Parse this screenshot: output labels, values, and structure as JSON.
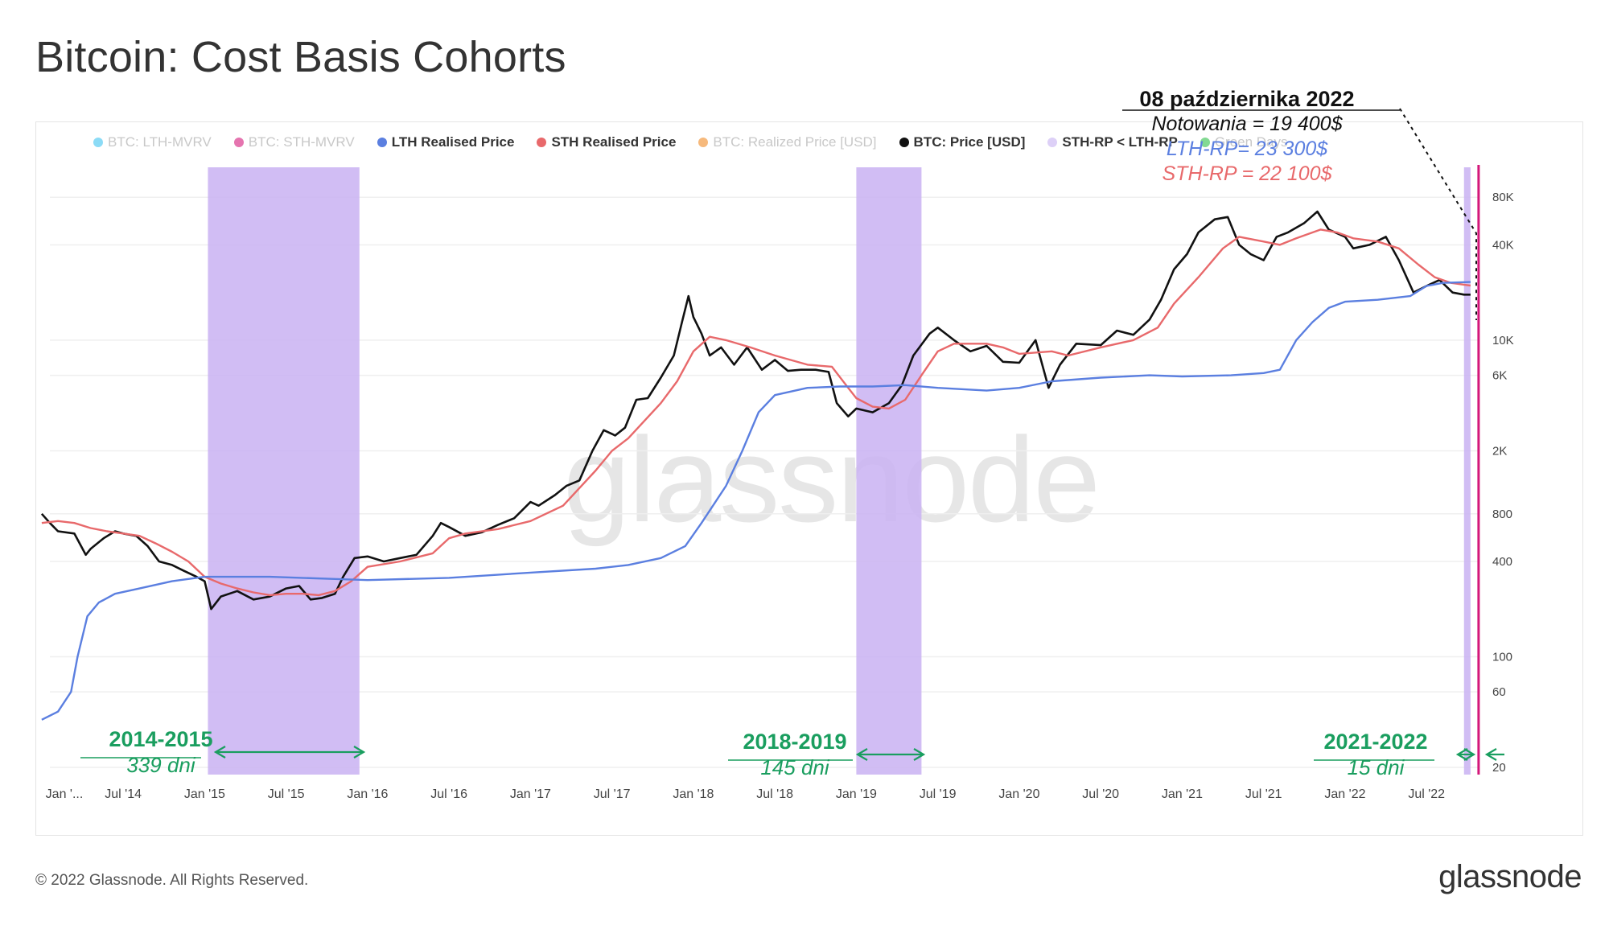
{
  "page": {
    "title": "Bitcoin: Cost Basis Cohorts",
    "copyright": "© 2022 Glassnode. All Rights Reserved.",
    "logo": "glassnode",
    "watermark": "glassnode"
  },
  "legend": [
    {
      "label": "BTC: LTH-MVRV",
      "color": "#3ec3f0",
      "faded": true
    },
    {
      "label": "BTC: STH-MVRV",
      "color": "#d4177a",
      "faded": true
    },
    {
      "label": "LTH Realised Price",
      "color": "#5b7fe0",
      "faded": false
    },
    {
      "label": "STH Realised Price",
      "color": "#e8696b",
      "faded": false
    },
    {
      "label": "BTC: Realized Price [USD]",
      "color": "#f08a24",
      "faded": true
    },
    {
      "label": "BTC: Price [USD]",
      "color": "#111111",
      "faded": false
    },
    {
      "label": "STH-RP < LTH-RP",
      "color": "#ddd0f7",
      "faded": false
    },
    {
      "label": "Green Days",
      "color": "#2fbf4a",
      "faded": true
    }
  ],
  "annotation": {
    "date": "08 października 2022",
    "price_line": "Notowania = 19 400$",
    "lth_line": "LTH-RP= 23 300$",
    "sth_line": "STH-RP = 22 100$",
    "price_color": "#111111",
    "lth_color": "#5b7fe0",
    "sth_color": "#e8696b"
  },
  "periods": [
    {
      "label": "2014-2015",
      "days": "339 dni"
    },
    {
      "label": "2018-2019",
      "days": "145 dni"
    },
    {
      "label": "2021-2022",
      "days": "15 dni"
    }
  ],
  "chart_data": {
    "type": "line",
    "scale": "log",
    "title": "Bitcoin: Cost Basis Cohorts",
    "xlabel": "",
    "ylabel": "",
    "xlim": [
      2014.05,
      2022.82
    ],
    "ylim": [
      18,
      110000
    ],
    "y_ticks": [
      20,
      60,
      100,
      400,
      800,
      2000,
      6000,
      10000,
      40000,
      80000
    ],
    "y_tick_labels": [
      "20",
      "60",
      "100",
      "400",
      "800",
      "2K",
      "6K",
      "10K",
      "40K",
      "80K"
    ],
    "x_ticks": [
      2014.0,
      2014.5,
      2015.0,
      2015.5,
      2016.0,
      2016.5,
      2017.0,
      2017.5,
      2018.0,
      2018.5,
      2019.0,
      2019.5,
      2020.0,
      2020.5,
      2021.0,
      2021.5,
      2022.0,
      2022.5
    ],
    "x_tick_labels": [
      "Jan '...",
      "Jul '14",
      "Jan '15",
      "Jul '15",
      "Jan '16",
      "Jul '16",
      "Jan '17",
      "Jul '17",
      "Jan '18",
      "Jul '18",
      "Jan '19",
      "Jul '19",
      "Jan '20",
      "Jul '20",
      "Jan '21",
      "Jul '21",
      "Jan '22",
      "Jul '22"
    ],
    "grid": true,
    "legend_position": "top",
    "shaded_regions": [
      {
        "name": "STH-RP < LTH-RP",
        "from": 2015.02,
        "to": 2015.95,
        "color": "#c9b2f2"
      },
      {
        "name": "STH-RP < LTH-RP",
        "from": 2019.0,
        "to": 2019.4,
        "color": "#c9b2f2"
      },
      {
        "name": "STH-RP < LTH-RP",
        "from": 2022.73,
        "to": 2022.77,
        "color": "#c9b2f2"
      }
    ],
    "marker_line": {
      "x": 2022.78,
      "color": "#d4177a"
    },
    "series": [
      {
        "name": "BTC: Price [USD]",
        "color": "#111111",
        "points": [
          [
            2014.0,
            800
          ],
          [
            2014.05,
            700
          ],
          [
            2014.1,
            620
          ],
          [
            2014.2,
            600
          ],
          [
            2014.27,
            440
          ],
          [
            2014.3,
            480
          ],
          [
            2014.38,
            560
          ],
          [
            2014.45,
            620
          ],
          [
            2014.5,
            600
          ],
          [
            2014.58,
            580
          ],
          [
            2014.65,
            500
          ],
          [
            2014.72,
            400
          ],
          [
            2014.8,
            380
          ],
          [
            2014.87,
            350
          ],
          [
            2014.95,
            320
          ],
          [
            2015.0,
            300
          ],
          [
            2015.04,
            200
          ],
          [
            2015.1,
            240
          ],
          [
            2015.2,
            260
          ],
          [
            2015.3,
            230
          ],
          [
            2015.4,
            240
          ],
          [
            2015.5,
            270
          ],
          [
            2015.58,
            280
          ],
          [
            2015.65,
            230
          ],
          [
            2015.72,
            235
          ],
          [
            2015.8,
            250
          ],
          [
            2015.85,
            320
          ],
          [
            2015.92,
            420
          ],
          [
            2016.0,
            430
          ],
          [
            2016.1,
            400
          ],
          [
            2016.2,
            420
          ],
          [
            2016.3,
            440
          ],
          [
            2016.4,
            580
          ],
          [
            2016.45,
            700
          ],
          [
            2016.5,
            660
          ],
          [
            2016.6,
            580
          ],
          [
            2016.7,
            610
          ],
          [
            2016.8,
            680
          ],
          [
            2016.9,
            750
          ],
          [
            2017.0,
            950
          ],
          [
            2017.05,
            900
          ],
          [
            2017.15,
            1050
          ],
          [
            2017.22,
            1200
          ],
          [
            2017.3,
            1300
          ],
          [
            2017.38,
            2000
          ],
          [
            2017.45,
            2700
          ],
          [
            2017.52,
            2500
          ],
          [
            2017.58,
            2800
          ],
          [
            2017.65,
            4200
          ],
          [
            2017.72,
            4300
          ],
          [
            2017.8,
            5800
          ],
          [
            2017.88,
            8000
          ],
          [
            2017.93,
            13000
          ],
          [
            2017.97,
            19000
          ],
          [
            2018.0,
            14000
          ],
          [
            2018.05,
            11000
          ],
          [
            2018.1,
            8000
          ],
          [
            2018.17,
            9000
          ],
          [
            2018.25,
            7000
          ],
          [
            2018.33,
            9000
          ],
          [
            2018.42,
            6500
          ],
          [
            2018.5,
            7500
          ],
          [
            2018.58,
            6400
          ],
          [
            2018.66,
            6500
          ],
          [
            2018.75,
            6500
          ],
          [
            2018.83,
            6300
          ],
          [
            2018.88,
            4000
          ],
          [
            2018.95,
            3300
          ],
          [
            2019.0,
            3700
          ],
          [
            2019.1,
            3500
          ],
          [
            2019.2,
            4000
          ],
          [
            2019.28,
            5200
          ],
          [
            2019.35,
            8000
          ],
          [
            2019.45,
            11000
          ],
          [
            2019.5,
            12000
          ],
          [
            2019.6,
            10000
          ],
          [
            2019.7,
            8500
          ],
          [
            2019.8,
            9200
          ],
          [
            2019.9,
            7300
          ],
          [
            2020.0,
            7200
          ],
          [
            2020.1,
            10000
          ],
          [
            2020.18,
            5000
          ],
          [
            2020.25,
            7000
          ],
          [
            2020.35,
            9500
          ],
          [
            2020.5,
            9300
          ],
          [
            2020.6,
            11500
          ],
          [
            2020.7,
            10800
          ],
          [
            2020.8,
            13500
          ],
          [
            2020.87,
            18000
          ],
          [
            2020.95,
            28000
          ],
          [
            2021.03,
            35000
          ],
          [
            2021.1,
            48000
          ],
          [
            2021.2,
            58000
          ],
          [
            2021.28,
            60000
          ],
          [
            2021.35,
            40000
          ],
          [
            2021.42,
            35000
          ],
          [
            2021.5,
            32000
          ],
          [
            2021.58,
            45000
          ],
          [
            2021.65,
            48000
          ],
          [
            2021.75,
            55000
          ],
          [
            2021.83,
            65000
          ],
          [
            2021.9,
            50000
          ],
          [
            2022.0,
            45000
          ],
          [
            2022.05,
            38000
          ],
          [
            2022.15,
            40000
          ],
          [
            2022.25,
            45000
          ],
          [
            2022.33,
            32000
          ],
          [
            2022.42,
            20000
          ],
          [
            2022.5,
            22000
          ],
          [
            2022.58,
            24000
          ],
          [
            2022.66,
            20000
          ],
          [
            2022.73,
            19400
          ],
          [
            2022.77,
            19400
          ]
        ]
      },
      {
        "name": "STH Realised Price",
        "color": "#e8696b",
        "points": [
          [
            2014.0,
            700
          ],
          [
            2014.1,
            720
          ],
          [
            2014.2,
            700
          ],
          [
            2014.3,
            650
          ],
          [
            2014.4,
            620
          ],
          [
            2014.5,
            600
          ],
          [
            2014.6,
            580
          ],
          [
            2014.7,
            520
          ],
          [
            2014.8,
            460
          ],
          [
            2014.9,
            400
          ],
          [
            2015.0,
            320
          ],
          [
            2015.1,
            290
          ],
          [
            2015.2,
            270
          ],
          [
            2015.3,
            255
          ],
          [
            2015.4,
            245
          ],
          [
            2015.5,
            250
          ],
          [
            2015.6,
            250
          ],
          [
            2015.7,
            245
          ],
          [
            2015.8,
            260
          ],
          [
            2015.9,
            300
          ],
          [
            2016.0,
            370
          ],
          [
            2016.2,
            400
          ],
          [
            2016.4,
            450
          ],
          [
            2016.5,
            560
          ],
          [
            2016.6,
            600
          ],
          [
            2016.8,
            640
          ],
          [
            2017.0,
            720
          ],
          [
            2017.2,
            900
          ],
          [
            2017.4,
            1500
          ],
          [
            2017.5,
            2000
          ],
          [
            2017.6,
            2400
          ],
          [
            2017.8,
            4000
          ],
          [
            2017.9,
            5500
          ],
          [
            2018.0,
            8500
          ],
          [
            2018.1,
            10500
          ],
          [
            2018.2,
            10000
          ],
          [
            2018.35,
            9000
          ],
          [
            2018.5,
            8000
          ],
          [
            2018.7,
            7000
          ],
          [
            2018.85,
            6800
          ],
          [
            2018.95,
            5000
          ],
          [
            2019.0,
            4300
          ],
          [
            2019.1,
            3800
          ],
          [
            2019.2,
            3700
          ],
          [
            2019.3,
            4200
          ],
          [
            2019.4,
            6000
          ],
          [
            2019.5,
            8500
          ],
          [
            2019.6,
            9500
          ],
          [
            2019.8,
            9500
          ],
          [
            2019.9,
            9000
          ],
          [
            2020.0,
            8200
          ],
          [
            2020.2,
            8500
          ],
          [
            2020.3,
            8000
          ],
          [
            2020.5,
            9000
          ],
          [
            2020.7,
            10000
          ],
          [
            2020.85,
            12000
          ],
          [
            2020.95,
            17000
          ],
          [
            2021.1,
            25000
          ],
          [
            2021.25,
            38000
          ],
          [
            2021.35,
            45000
          ],
          [
            2021.5,
            42000
          ],
          [
            2021.6,
            40000
          ],
          [
            2021.7,
            44000
          ],
          [
            2021.85,
            50000
          ],
          [
            2021.95,
            48000
          ],
          [
            2022.05,
            44000
          ],
          [
            2022.2,
            42000
          ],
          [
            2022.33,
            38000
          ],
          [
            2022.45,
            30000
          ],
          [
            2022.55,
            25000
          ],
          [
            2022.65,
            23000
          ],
          [
            2022.77,
            22100
          ]
        ]
      },
      {
        "name": "LTH Realised Price",
        "color": "#5b7fe0",
        "points": [
          [
            2014.0,
            40
          ],
          [
            2014.1,
            45
          ],
          [
            2014.18,
            60
          ],
          [
            2014.22,
            100
          ],
          [
            2014.28,
            180
          ],
          [
            2014.35,
            220
          ],
          [
            2014.45,
            250
          ],
          [
            2014.6,
            270
          ],
          [
            2014.8,
            300
          ],
          [
            2015.0,
            320
          ],
          [
            2015.4,
            320
          ],
          [
            2015.8,
            310
          ],
          [
            2016.0,
            305
          ],
          [
            2016.5,
            315
          ],
          [
            2017.0,
            340
          ],
          [
            2017.4,
            360
          ],
          [
            2017.6,
            380
          ],
          [
            2017.8,
            420
          ],
          [
            2017.95,
            500
          ],
          [
            2018.05,
            700
          ],
          [
            2018.2,
            1200
          ],
          [
            2018.3,
            2000
          ],
          [
            2018.4,
            3500
          ],
          [
            2018.5,
            4500
          ],
          [
            2018.7,
            5000
          ],
          [
            2018.9,
            5100
          ],
          [
            2019.1,
            5100
          ],
          [
            2019.3,
            5200
          ],
          [
            2019.5,
            5000
          ],
          [
            2019.8,
            4800
          ],
          [
            2020.0,
            5000
          ],
          [
            2020.2,
            5500
          ],
          [
            2020.5,
            5800
          ],
          [
            2020.8,
            6000
          ],
          [
            2021.0,
            5900
          ],
          [
            2021.3,
            6000
          ],
          [
            2021.5,
            6200
          ],
          [
            2021.6,
            6500
          ],
          [
            2021.7,
            10000
          ],
          [
            2021.8,
            13000
          ],
          [
            2021.9,
            16000
          ],
          [
            2022.0,
            17500
          ],
          [
            2022.2,
            18000
          ],
          [
            2022.4,
            19000
          ],
          [
            2022.5,
            22000
          ],
          [
            2022.6,
            23000
          ],
          [
            2022.77,
            23300
          ]
        ]
      }
    ]
  }
}
